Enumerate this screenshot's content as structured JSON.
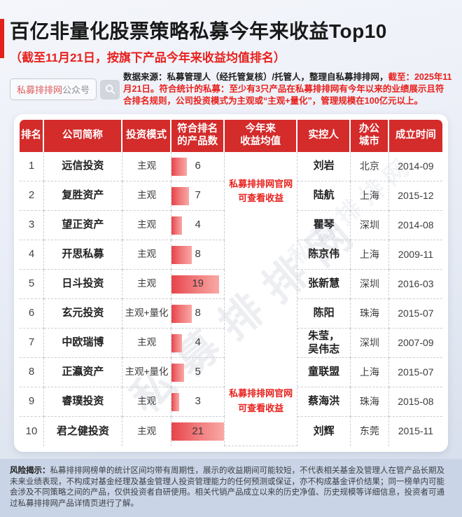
{
  "page": {
    "title": "百亿非量化股票策略私募今年来收益Top10",
    "subtitle": "（截至11月21日，按旗下产品今年来收益均值排名）"
  },
  "badge": {
    "brand": "私募排排网",
    "suffix": "公众号",
    "icon": "search-icon"
  },
  "source_note": {
    "black": "数据来源：私募管理人（经托管复核）/托管人，整理自私募排排网，",
    "red": "截至：2025年11月21日。符合统计的私募：至少有3只产品在私募排排网有今年以来的业绩展示且符合排名规则，公司投资模式为主观或“主观+量化”，管理规模在100亿元以上。"
  },
  "table": {
    "columns": [
      "排名",
      "公司简称",
      "投资模式",
      "符合排名\n的产品数",
      "今年来\n收益均值",
      "实控人",
      "办公\n城市",
      "成立时间"
    ],
    "avg_note": "私募排排网官网\n可查看收益",
    "max_count": 21,
    "rows": [
      {
        "rank": "1",
        "company": "远信投资",
        "mode": "主观",
        "count": 6,
        "controller": "刘岩",
        "city": "北京",
        "founded": "2014-09"
      },
      {
        "rank": "2",
        "company": "复胜资产",
        "mode": "主观",
        "count": 7,
        "controller": "陆航",
        "city": "上海",
        "founded": "2015-12"
      },
      {
        "rank": "3",
        "company": "望正资产",
        "mode": "主观",
        "count": 4,
        "controller": "瞿琴",
        "city": "深圳",
        "founded": "2014-08"
      },
      {
        "rank": "4",
        "company": "开思私募",
        "mode": "主观",
        "count": 8,
        "controller": "陈京伟",
        "city": "上海",
        "founded": "2009-11"
      },
      {
        "rank": "5",
        "company": "日斗投资",
        "mode": "主观",
        "count": 19,
        "controller": "张新慧",
        "city": "深圳",
        "founded": "2016-03"
      },
      {
        "rank": "6",
        "company": "玄元投资",
        "mode": "主观+量化",
        "count": 8,
        "controller": "陈阳",
        "city": "珠海",
        "founded": "2015-07"
      },
      {
        "rank": "7",
        "company": "中欧瑞博",
        "mode": "主观",
        "count": 4,
        "controller": "朱莹，\n吴伟志",
        "city": "深圳",
        "founded": "2007-09"
      },
      {
        "rank": "8",
        "company": "正瀛资产",
        "mode": "主观+量化",
        "count": 5,
        "controller": "童联盟",
        "city": "上海",
        "founded": "2015-07"
      },
      {
        "rank": "9",
        "company": "睿璞投资",
        "mode": "主观",
        "count": 3,
        "controller": "蔡海洪",
        "city": "珠海",
        "founded": "2015-08"
      },
      {
        "rank": "10",
        "company": "君之健投资",
        "mode": "主观",
        "count": 21,
        "controller": "刘辉",
        "city": "东莞",
        "founded": "2015-11"
      }
    ]
  },
  "watermark": "私募排排网",
  "footer": {
    "label": "风险揭示：",
    "text": "私募排排网榜单的统计区间均带有周期性，展示的收益期间可能较短，不代表相关基金及管理人在管产品长期及未来业绩表现，不构成对基金经理及基金管理人投资管理能力的任何预测或保证，亦不构成基金评价结果；同一榜单内可能会涉及不同策略之间的产品，仅供投资者自研使用。相关代销产品成立以来的历史净值、历史规模等详细信息，投资者可通过私募排排网产品详情页进行了解。"
  },
  "colors": {
    "header_red": "#d42b2b",
    "text_red": "#e8211d",
    "bar_gradient_start": "#e6434a",
    "bar_gradient_end": "#f9a8a5",
    "footer_bg": "#c9d4e6"
  },
  "chart_data": {
    "type": "table",
    "title": "百亿非量化股票策略私募今年来收益Top10",
    "subtitle": "（截至11月21日，按旗下产品今年来收益均值排名）",
    "columns": [
      "排名",
      "公司简称",
      "投资模式",
      "符合排名的产品数",
      "今年来收益均值",
      "实控人",
      "办公城市",
      "成立时间"
    ],
    "rows": [
      [
        "1",
        "远信投资",
        "主观",
        6,
        "私募排排网官网可查看收益",
        "刘岩",
        "北京",
        "2014-09"
      ],
      [
        "2",
        "复胜资产",
        "主观",
        7,
        "私募排排网官网可查看收益",
        "陆航",
        "上海",
        "2015-12"
      ],
      [
        "3",
        "望正资产",
        "主观",
        4,
        "私募排排网官网可查看收益",
        "瞿琴",
        "深圳",
        "2014-08"
      ],
      [
        "4",
        "开思私募",
        "主观",
        8,
        "私募排排网官网可查看收益",
        "陈京伟",
        "上海",
        "2009-11"
      ],
      [
        "5",
        "日斗投资",
        "主观",
        19,
        "私募排排网官网可查看收益",
        "张新慧",
        "深圳",
        "2016-03"
      ],
      [
        "6",
        "玄元投资",
        "主观+量化",
        8,
        "私募排排网官网可查看收益",
        "陈阳",
        "珠海",
        "2015-07"
      ],
      [
        "7",
        "中欧瑞博",
        "主观",
        4,
        "私募排排网官网可查看收益",
        "朱莹，吴伟志",
        "深圳",
        "2007-09"
      ],
      [
        "8",
        "正瀛资产",
        "主观+量化",
        5,
        "私募排排网官网可查看收益",
        "童联盟",
        "上海",
        "2015-07"
      ],
      [
        "9",
        "睿璞投资",
        "主观",
        3,
        "私募排排网官网可查看收益",
        "蔡海洪",
        "珠海",
        "2015-08"
      ],
      [
        "10",
        "君之健投资",
        "主观",
        21,
        "私募排排网官网可查看收益",
        "刘辉",
        "东莞",
        "2015-11"
      ]
    ],
    "bar_column": "符合排名的产品数",
    "bar_values": [
      6,
      7,
      4,
      8,
      19,
      8,
      4,
      5,
      3,
      21
    ],
    "bar_range": [
      0,
      21
    ]
  }
}
